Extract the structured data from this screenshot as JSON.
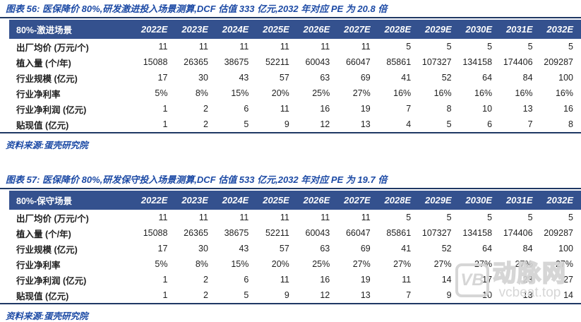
{
  "tables": [
    {
      "title": "图表 56: 医保降价 80%,研发激进投入场景测算,DCF 估值 333 亿元,2032 年对应 PE 为 20.8 倍",
      "scenario_label": "80%-激进场景",
      "years": [
        "2022E",
        "2023E",
        "2024E",
        "2025E",
        "2026E",
        "2027E",
        "2028E",
        "2029E",
        "2030E",
        "2031E",
        "2032E"
      ],
      "rows": [
        {
          "label": "出厂均价 (万元/个)",
          "values": [
            "11",
            "11",
            "11",
            "11",
            "11",
            "11",
            "5",
            "5",
            "5",
            "5",
            "5"
          ]
        },
        {
          "label": "植入量 (个/年)",
          "values": [
            "15088",
            "26365",
            "38675",
            "52211",
            "60043",
            "66047",
            "85861",
            "107327",
            "134158",
            "174406",
            "209287"
          ]
        },
        {
          "label": "行业规模 (亿元)",
          "values": [
            "17",
            "30",
            "43",
            "57",
            "63",
            "69",
            "41",
            "52",
            "64",
            "84",
            "100"
          ]
        },
        {
          "label": "行业净利率",
          "values": [
            "5%",
            "8%",
            "15%",
            "20%",
            "25%",
            "27%",
            "16%",
            "16%",
            "16%",
            "16%",
            "16%"
          ]
        },
        {
          "label": "行业净利润 (亿元)",
          "values": [
            "1",
            "2",
            "6",
            "11",
            "16",
            "19",
            "7",
            "8",
            "10",
            "13",
            "16"
          ]
        },
        {
          "label": "贴现值 (亿元)",
          "values": [
            "1",
            "2",
            "5",
            "9",
            "12",
            "13",
            "4",
            "5",
            "6",
            "7",
            "8"
          ]
        }
      ],
      "source": "资料来源:蛋壳研究院"
    },
    {
      "title": "图表 57: 医保降价 80%,研发保守投入场景测算,DCF 估值 533 亿元,2032 年对应 PE 为 19.7 倍",
      "scenario_label": "80%-保守场景",
      "years": [
        "2022E",
        "2023E",
        "2024E",
        "2025E",
        "2026E",
        "2027E",
        "2028E",
        "2029E",
        "2030E",
        "2031E",
        "2032E"
      ],
      "rows": [
        {
          "label": "出厂均价 (万元/个)",
          "values": [
            "11",
            "11",
            "11",
            "11",
            "11",
            "11",
            "5",
            "5",
            "5",
            "5",
            "5"
          ]
        },
        {
          "label": "植入量 (个/年)",
          "values": [
            "15088",
            "26365",
            "38675",
            "52211",
            "60043",
            "66047",
            "85861",
            "107327",
            "134158",
            "174406",
            "209287"
          ]
        },
        {
          "label": "行业规模 (亿元)",
          "values": [
            "17",
            "30",
            "43",
            "57",
            "63",
            "69",
            "41",
            "52",
            "64",
            "84",
            "100"
          ]
        },
        {
          "label": "行业净利率",
          "values": [
            "5%",
            "8%",
            "15%",
            "20%",
            "25%",
            "27%",
            "27%",
            "27%",
            "27%",
            "27%",
            "27%"
          ]
        },
        {
          "label": "行业净利润 (亿元)",
          "values": [
            "1",
            "2",
            "6",
            "11",
            "16",
            "19",
            "11",
            "14",
            "17",
            "23",
            "27"
          ]
        },
        {
          "label": "贴现值 (亿元)",
          "values": [
            "1",
            "2",
            "5",
            "9",
            "12",
            "13",
            "7",
            "9",
            "10",
            "13",
            "14"
          ]
        }
      ],
      "source": "资料来源:蛋壳研究院"
    }
  ],
  "watermark": {
    "logo": "VB",
    "brand": "动脉网",
    "url": "vcbeat.top"
  },
  "colors": {
    "title_blue": "#1c4aa5",
    "header_navy": "#34518e",
    "rule_navy": "#1f3864",
    "watermark_gray": "#d2d2d2"
  }
}
